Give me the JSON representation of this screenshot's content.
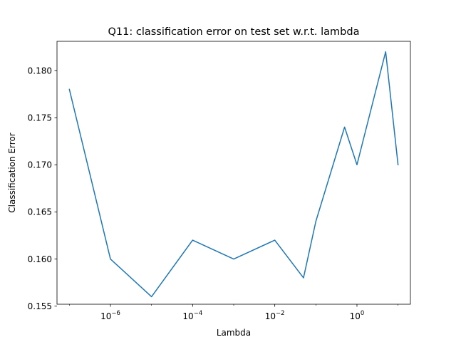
{
  "chart_data": {
    "type": "line",
    "title": "Q11: classification error on test set w.r.t. lambda",
    "xlabel": "Lambda",
    "ylabel": "Classification Error",
    "x_scale": "log10",
    "xlim": [
      5e-08,
      20
    ],
    "ylim": [
      0.1552,
      0.1831
    ],
    "grid": false,
    "series": [
      {
        "color": "#1f77b4",
        "x": [
          1e-07,
          1e-06,
          1e-05,
          0.0001,
          0.001,
          0.01,
          0.05,
          0.1,
          0.5,
          1,
          5,
          10
        ],
        "values": [
          0.178,
          0.16,
          0.156,
          0.162,
          0.16,
          0.162,
          0.158,
          0.164,
          0.174,
          0.17,
          0.182,
          0.17
        ]
      }
    ],
    "x_ticks": [
      {
        "value": 1e-06,
        "base": "10",
        "exp": "−6"
      },
      {
        "value": 0.0001,
        "base": "10",
        "exp": "−4"
      },
      {
        "value": 0.01,
        "base": "10",
        "exp": "−2"
      },
      {
        "value": 1,
        "base": "10",
        "exp": "0"
      }
    ],
    "y_ticks": [
      {
        "value": 0.155,
        "label": "0.155"
      },
      {
        "value": 0.16,
        "label": "0.160"
      },
      {
        "value": 0.165,
        "label": "0.165"
      },
      {
        "value": 0.17,
        "label": "0.170"
      },
      {
        "value": 0.175,
        "label": "0.175"
      },
      {
        "value": 0.18,
        "label": "0.180"
      }
    ]
  }
}
